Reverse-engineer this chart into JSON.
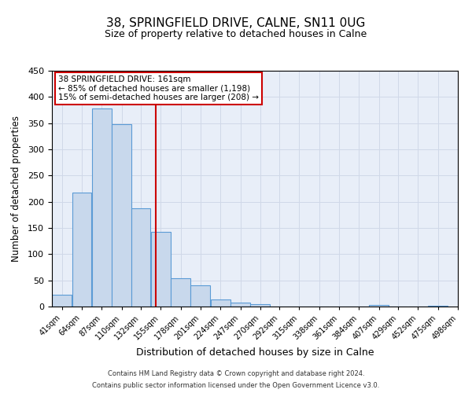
{
  "title": "38, SPRINGFIELD DRIVE, CALNE, SN11 0UG",
  "subtitle": "Size of property relative to detached houses in Calne",
  "xlabel": "Distribution of detached houses by size in Calne",
  "ylabel": "Number of detached properties",
  "bar_left_edges": [
    41,
    64,
    87,
    110,
    132,
    155,
    178,
    201,
    224,
    247,
    270,
    292,
    315,
    338,
    361,
    384,
    407,
    429,
    452,
    475
  ],
  "bar_heights": [
    22,
    218,
    378,
    348,
    188,
    143,
    54,
    40,
    14,
    7,
    5,
    0,
    0,
    0,
    0,
    0,
    3,
    0,
    0,
    2
  ],
  "bin_width": 23,
  "tick_labels": [
    "41sqm",
    "64sqm",
    "87sqm",
    "110sqm",
    "132sqm",
    "155sqm",
    "178sqm",
    "201sqm",
    "224sqm",
    "247sqm",
    "270sqm",
    "292sqm",
    "315sqm",
    "338sqm",
    "361sqm",
    "384sqm",
    "407sqm",
    "429sqm",
    "452sqm",
    "475sqm",
    "498sqm"
  ],
  "property_size": 161,
  "ylim": [
    0,
    450
  ],
  "yticks": [
    0,
    50,
    100,
    150,
    200,
    250,
    300,
    350,
    400,
    450
  ],
  "bar_facecolor": "#c8d8ec",
  "bar_edgecolor": "#5b9bd5",
  "vline_color": "#cc0000",
  "annotation_box_edgecolor": "#cc0000",
  "annotation_line1": "38 SPRINGFIELD DRIVE: 161sqm",
  "annotation_line2": "← 85% of detached houses are smaller (1,198)",
  "annotation_line3": "15% of semi-detached houses are larger (208) →",
  "grid_color": "#d0d8e8",
  "background_color": "#e8eef8",
  "footer_line1": "Contains HM Land Registry data © Crown copyright and database right 2024.",
  "footer_line2": "Contains public sector information licensed under the Open Government Licence v3.0."
}
